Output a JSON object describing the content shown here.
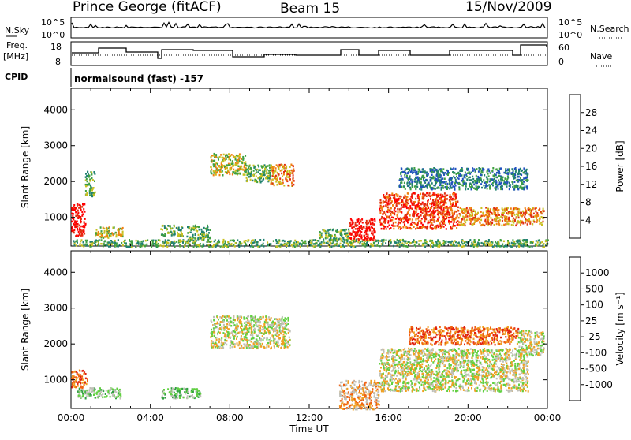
{
  "header": {
    "station": "Prince George (fitACF)",
    "beam": "Beam 15",
    "date": "15/Nov/2009"
  },
  "top_panels": {
    "nsky_label": "N.Sky",
    "nsky_ticks": [
      "10^5",
      "10^0"
    ],
    "nsearch_label": "N.Search",
    "nsearch_ticks": [
      "10^5",
      "10^0"
    ],
    "freq_label": "Freq.",
    "freq_unit": "[MHz]",
    "freq_ticks": [
      "18",
      "8"
    ],
    "nave_label": "Nave",
    "nave_ticks": [
      "60",
      "0"
    ],
    "cpid_label": "CPID",
    "cpid_value": "normalsound (fast) -157"
  },
  "chart_data": [
    {
      "type": "heatmap",
      "name": "power-panel",
      "xlabel": "",
      "ylabel": "Slant Range [km]",
      "xlim": [
        0,
        24
      ],
      "ylim": [
        200,
        4600
      ],
      "yticks": [
        1000,
        2000,
        3000,
        4000
      ],
      "colorbar": {
        "label": "Power [dB]",
        "ticks": [
          "4",
          "8",
          "12",
          "16",
          "20",
          "24",
          "28"
        ],
        "colors": [
          "#1010ff",
          "#2050c0",
          "#208070",
          "#40a040",
          "#c8c020",
          "#f08010",
          "#e03010",
          "#ff0000"
        ]
      },
      "regions": [
        {
          "t0": 0.0,
          "t1": 0.7,
          "r0": 500,
          "r1": 1400,
          "level": 7
        },
        {
          "t0": 0.7,
          "t1": 1.2,
          "r0": 1600,
          "r1": 2300,
          "level": 3
        },
        {
          "t0": 1.2,
          "t1": 2.6,
          "r0": 450,
          "r1": 750,
          "level": 4
        },
        {
          "t0": 4.5,
          "t1": 5.6,
          "r0": 500,
          "r1": 800,
          "level": 3
        },
        {
          "t0": 5.8,
          "t1": 7.0,
          "r0": 400,
          "r1": 800,
          "level": 3
        },
        {
          "t0": 7.0,
          "t1": 8.8,
          "r0": 2200,
          "r1": 2800,
          "level": 4
        },
        {
          "t0": 8.8,
          "t1": 10.0,
          "r0": 2000,
          "r1": 2500,
          "level": 3
        },
        {
          "t0": 10.0,
          "t1": 11.2,
          "r0": 1900,
          "r1": 2500,
          "level": 5
        },
        {
          "t0": 12.5,
          "t1": 14.0,
          "r0": 400,
          "r1": 700,
          "level": 3
        },
        {
          "t0": 14.0,
          "t1": 15.3,
          "r0": 350,
          "r1": 1000,
          "level": 7
        },
        {
          "t0": 15.5,
          "t1": 19.5,
          "r0": 700,
          "r1": 1700,
          "level": 6
        },
        {
          "t0": 19.5,
          "t1": 23.8,
          "r0": 800,
          "r1": 1300,
          "level": 5
        },
        {
          "t0": 16.5,
          "t1": 23.0,
          "r0": 1800,
          "r1": 2400,
          "level": 2
        },
        {
          "t0": 0.0,
          "t1": 24.0,
          "r0": 200,
          "r1": 400,
          "level": 3
        }
      ]
    },
    {
      "type": "heatmap",
      "name": "velocity-panel",
      "xlabel": "Time UT",
      "ylabel": "Slant Range [km]",
      "xlim": [
        0,
        24
      ],
      "ylim": [
        200,
        4600
      ],
      "xticks": [
        "00:00",
        "04:00",
        "08:00",
        "12:00",
        "16:00",
        "20:00",
        "00:00"
      ],
      "yticks": [
        1000,
        2000,
        3000,
        4000
      ],
      "colorbar": {
        "label": "Velocity [m s⁻¹]",
        "ticks": [
          "1000",
          "500",
          "100",
          "25",
          "-25",
          "-100",
          "-500",
          "-1000"
        ],
        "colors": [
          "#1020c0",
          "#208080",
          "#30a040",
          "#60d040",
          "#c0c0b8",
          "#f0a020",
          "#f06010",
          "#e02010",
          "#ff0000"
        ]
      },
      "regions": [
        {
          "t0": 0.0,
          "t1": 0.8,
          "r0": 800,
          "r1": 1300,
          "level": 6
        },
        {
          "t0": 0.3,
          "t1": 2.5,
          "r0": 500,
          "r1": 800,
          "level": 3
        },
        {
          "t0": 4.5,
          "t1": 6.5,
          "r0": 500,
          "r1": 800,
          "level": 3
        },
        {
          "t0": 7.0,
          "t1": 11.0,
          "r0": 1900,
          "r1": 2800,
          "level": 4
        },
        {
          "t0": 13.5,
          "t1": 15.5,
          "r0": 200,
          "r1": 1000,
          "level": 5
        },
        {
          "t0": 15.5,
          "t1": 23.0,
          "r0": 700,
          "r1": 1900,
          "level": 4
        },
        {
          "t0": 17.0,
          "t1": 22.5,
          "r0": 2000,
          "r1": 2500,
          "level": 6
        },
        {
          "t0": 22.5,
          "t1": 23.8,
          "r0": 1700,
          "r1": 2400,
          "level": 4
        }
      ]
    }
  ]
}
